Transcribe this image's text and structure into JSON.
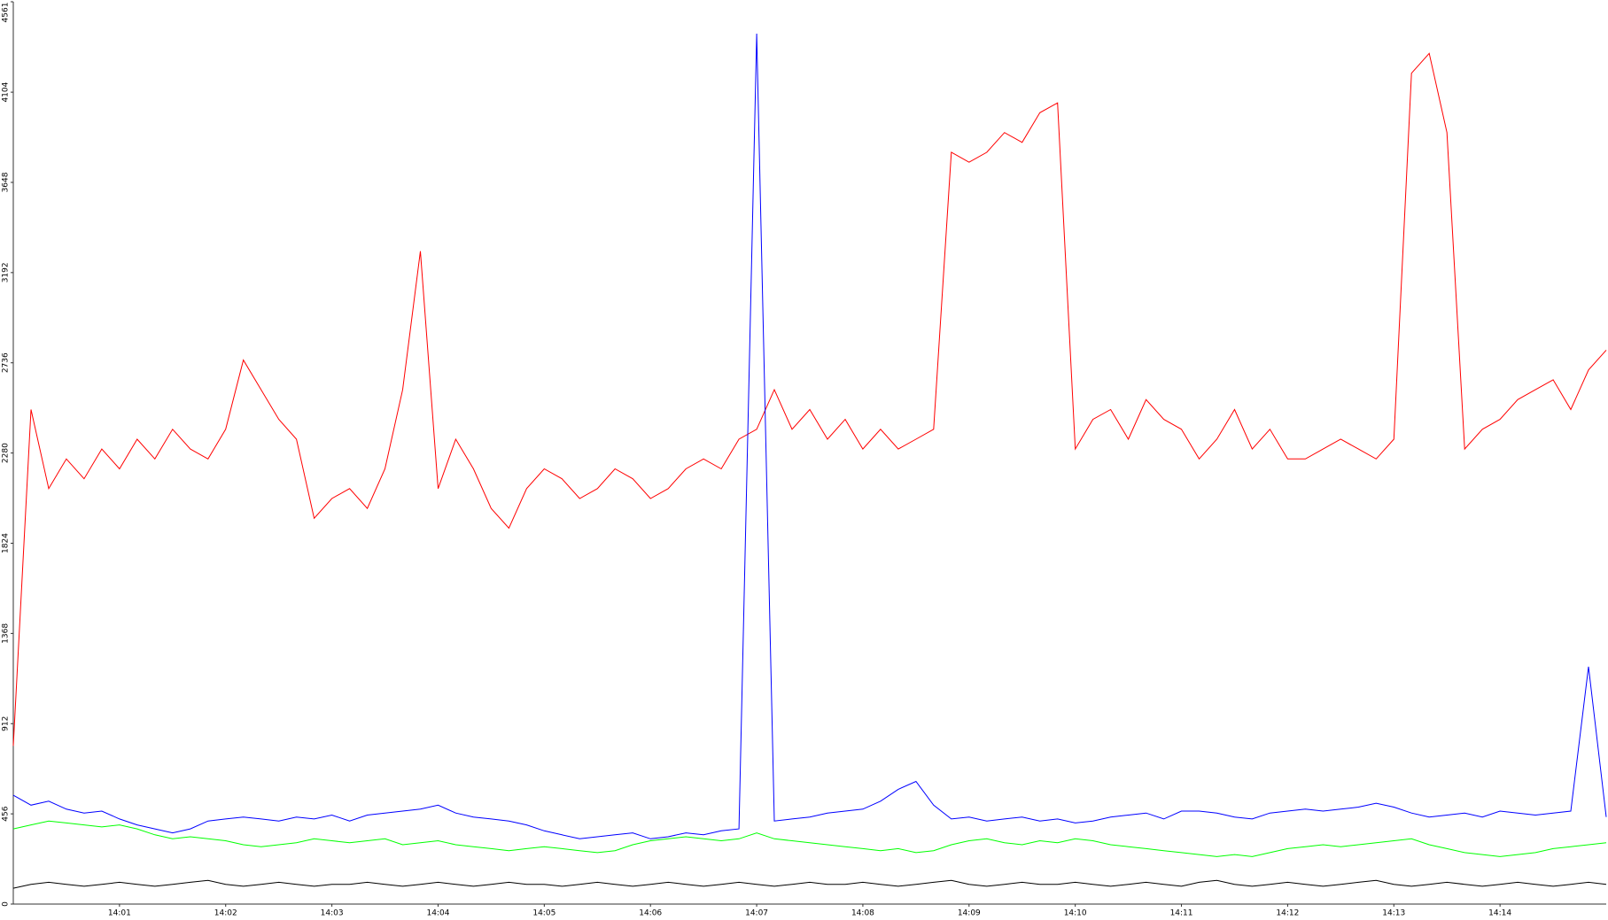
{
  "chart_data": {
    "type": "line",
    "categories": [
      null,
      null,
      null,
      null,
      null,
      null,
      "14:01",
      null,
      null,
      null,
      null,
      null,
      "14:02",
      null,
      null,
      null,
      null,
      null,
      "14:03",
      null,
      null,
      null,
      null,
      null,
      "14:04",
      null,
      null,
      null,
      null,
      null,
      "14:05",
      null,
      null,
      null,
      null,
      null,
      "14:06",
      null,
      null,
      null,
      null,
      null,
      "14:07",
      null,
      null,
      null,
      null,
      null,
      "14:08",
      null,
      null,
      null,
      null,
      null,
      "14:09",
      null,
      null,
      null,
      null,
      null,
      "14:10",
      null,
      null,
      null,
      null,
      null,
      "14:11",
      null,
      null,
      null,
      null,
      null,
      "14:12",
      null,
      null,
      null,
      null,
      null,
      "14:13",
      null,
      null,
      null,
      null,
      null,
      "14:14",
      null,
      null,
      null,
      null,
      null,
      null
    ],
    "series": [
      {
        "color": "#ff0000",
        "values": [
          800,
          2500,
          2100,
          2250,
          2150,
          2300,
          2200,
          2350,
          2250,
          2400,
          2300,
          2250,
          2400,
          2750,
          2600,
          2450,
          2350,
          1950,
          2050,
          2100,
          2000,
          2200,
          2600,
          3300,
          2100,
          2350,
          2200,
          2000,
          1900,
          2100,
          2200,
          2150,
          2050,
          2100,
          2200,
          2150,
          2050,
          2100,
          2200,
          2250,
          2200,
          2350,
          2400,
          2600,
          2400,
          2500,
          2350,
          2450,
          2300,
          2400,
          2300,
          2350,
          2400,
          3800,
          3750,
          3800,
          3900,
          3850,
          4000,
          4050,
          2300,
          2450,
          2500,
          2350,
          2550,
          2450,
          2400,
          2250,
          2350,
          2500,
          2300,
          2400,
          2250,
          2250,
          2300,
          2350,
          2300,
          2250,
          2350,
          4200,
          4300,
          3900,
          2300,
          2400,
          2450,
          2550,
          2600,
          2650,
          2500,
          2700,
          2800
        ]
      },
      {
        "color": "#0000ff",
        "values": [
          550,
          500,
          520,
          480,
          460,
          470,
          430,
          400,
          380,
          360,
          380,
          420,
          430,
          440,
          430,
          420,
          440,
          430,
          450,
          420,
          450,
          460,
          470,
          480,
          500,
          460,
          440,
          430,
          420,
          400,
          370,
          350,
          330,
          340,
          350,
          360,
          330,
          340,
          360,
          350,
          370,
          380,
          4400,
          420,
          430,
          440,
          460,
          470,
          480,
          520,
          580,
          620,
          500,
          430,
          440,
          420,
          430,
          440,
          420,
          430,
          410,
          420,
          440,
          450,
          460,
          430,
          470,
          470,
          460,
          440,
          430,
          460,
          470,
          480,
          470,
          480,
          490,
          510,
          490,
          460,
          440,
          450,
          460,
          440,
          470,
          460,
          450,
          460,
          470,
          1200,
          440
        ]
      },
      {
        "color": "#00ff00",
        "values": [
          380,
          400,
          420,
          410,
          400,
          390,
          400,
          380,
          350,
          330,
          340,
          330,
          320,
          300,
          290,
          300,
          310,
          330,
          320,
          310,
          320,
          330,
          300,
          310,
          320,
          300,
          290,
          280,
          270,
          280,
          290,
          280,
          270,
          260,
          270,
          300,
          320,
          330,
          340,
          330,
          320,
          330,
          360,
          330,
          320,
          310,
          300,
          290,
          280,
          270,
          280,
          260,
          270,
          300,
          320,
          330,
          310,
          300,
          320,
          310,
          330,
          320,
          300,
          290,
          280,
          270,
          260,
          250,
          240,
          250,
          240,
          260,
          280,
          290,
          300,
          290,
          300,
          310,
          320,
          330,
          300,
          280,
          260,
          250,
          240,
          250,
          260,
          280,
          290,
          300,
          310
        ]
      },
      {
        "color": "#000000",
        "values": [
          80,
          100,
          110,
          100,
          90,
          100,
          110,
          100,
          90,
          100,
          110,
          120,
          100,
          90,
          100,
          110,
          100,
          90,
          100,
          100,
          110,
          100,
          90,
          100,
          110,
          100,
          90,
          100,
          110,
          100,
          100,
          90,
          100,
          110,
          100,
          90,
          100,
          110,
          100,
          90,
          100,
          110,
          100,
          90,
          100,
          110,
          100,
          100,
          110,
          100,
          90,
          100,
          110,
          120,
          100,
          90,
          100,
          110,
          100,
          100,
          110,
          100,
          90,
          100,
          110,
          100,
          90,
          110,
          120,
          100,
          90,
          100,
          110,
          100,
          90,
          100,
          110,
          120,
          100,
          90,
          100,
          110,
          100,
          90,
          100,
          110,
          100,
          90,
          100,
          110,
          100
        ]
      }
    ],
    "ylim": [
      0,
      4561
    ],
    "yticks": [
      0,
      456,
      912,
      1368,
      1824,
      2280,
      2736,
      3192,
      3648,
      4104,
      4561
    ],
    "grid": false
  }
}
